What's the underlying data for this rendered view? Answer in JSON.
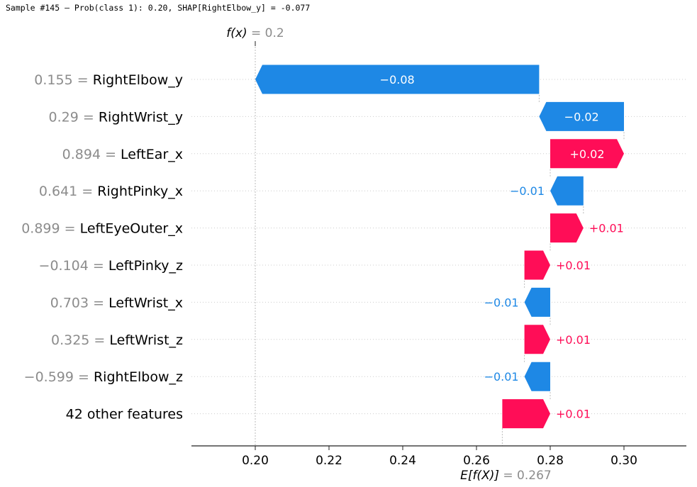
{
  "header": "Sample #145 — Prob(class 1): 0.20, SHAP[RightElbow_y] = -0.077",
  "chart_data": {
    "type": "waterfall",
    "base_value": 0.267,
    "output_value": 0.2,
    "fx_label": "f(x)",
    "fx_value_text": "= 0.2",
    "efx_label": "E[f(X)]",
    "efx_value_text": "= 0.267",
    "xlim": [
      0.183,
      0.317
    ],
    "xticks": [
      0.2,
      0.22,
      0.24,
      0.26,
      0.28,
      0.3
    ],
    "xtick_labels": [
      "0.20",
      "0.22",
      "0.24",
      "0.26",
      "0.28",
      "0.30"
    ],
    "colors": {
      "positive": "#ff0d57",
      "negative": "#1e88e5",
      "muted": "#8c8c8c"
    },
    "features": [
      {
        "value": "0.155",
        "name": "RightElbow_y",
        "start": 0.277,
        "end": 0.2,
        "label": "−0.08"
      },
      {
        "value": "0.29",
        "name": "RightWrist_y",
        "start": 0.3,
        "end": 0.277,
        "label": "−0.02"
      },
      {
        "value": "0.894",
        "name": "LeftEar_x",
        "start": 0.28,
        "end": 0.3,
        "label": "+0.02"
      },
      {
        "value": "0.641",
        "name": "RightPinky_x",
        "start": 0.289,
        "end": 0.28,
        "label": "−0.01"
      },
      {
        "value": "0.899",
        "name": "LeftEyeOuter_x",
        "start": 0.28,
        "end": 0.289,
        "label": "+0.01"
      },
      {
        "value": "−0.104",
        "name": "LeftPinky_z",
        "start": 0.273,
        "end": 0.28,
        "label": "+0.01"
      },
      {
        "value": "0.703",
        "name": "LeftWrist_x",
        "start": 0.28,
        "end": 0.273,
        "label": "−0.01"
      },
      {
        "value": "0.325",
        "name": "LeftWrist_z",
        "start": 0.273,
        "end": 0.28,
        "label": "+0.01"
      },
      {
        "value": "−0.599",
        "name": "RightElbow_z",
        "start": 0.28,
        "end": 0.273,
        "label": "−0.01"
      },
      {
        "value": "",
        "name": "42 other features",
        "start": 0.267,
        "end": 0.28,
        "label": "+0.01"
      }
    ]
  }
}
